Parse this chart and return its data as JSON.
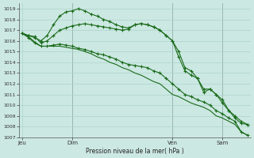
{
  "background_color": "#cce8e2",
  "grid_color": "#aad4cc",
  "line_color": "#1a6b1a",
  "ylabel": "Pression niveau de la mer( hPa )",
  "ylim": [
    1007,
    1019.5
  ],
  "yticks": [
    1007,
    1008,
    1009,
    1010,
    1011,
    1012,
    1013,
    1014,
    1015,
    1016,
    1017,
    1018,
    1019
  ],
  "xtick_labels": [
    "Jeu",
    "Dim",
    "Ven",
    "Sam"
  ],
  "xtick_positions": [
    0,
    8,
    24,
    32
  ],
  "vline_positions": [
    8,
    24,
    32
  ],
  "total_points": 37,
  "series1_x": [
    0,
    1,
    2,
    3,
    4,
    5,
    6,
    7,
    8,
    9,
    10,
    11,
    12,
    13,
    14,
    15,
    16,
    17,
    18,
    19,
    20,
    21,
    22,
    23,
    24,
    25,
    26,
    27,
    28,
    29,
    30,
    31,
    32,
    33,
    34,
    35,
    36
  ],
  "series1": [
    1016.7,
    1016.5,
    1016.4,
    1015.8,
    1016.0,
    1016.5,
    1017.0,
    1017.2,
    1017.4,
    1017.5,
    1017.6,
    1017.5,
    1017.4,
    1017.3,
    1017.2,
    1017.1,
    1017.0,
    1017.1,
    1017.5,
    1017.6,
    1017.5,
    1017.3,
    1017.0,
    1016.5,
    1016.0,
    1015.0,
    1013.5,
    1013.2,
    1012.5,
    1011.2,
    1011.5,
    1011.0,
    1010.5,
    1009.5,
    1009.0,
    1008.5,
    1008.2
  ],
  "series2_x": [
    0,
    1,
    2,
    3,
    4,
    5,
    6,
    7,
    8,
    9,
    10,
    11,
    12,
    13,
    14,
    15,
    16,
    17,
    18,
    19,
    20,
    21,
    22,
    23,
    24,
    25,
    26,
    27,
    28,
    29,
    30,
    31,
    32,
    33,
    34,
    35,
    36
  ],
  "series2": [
    1016.7,
    1016.5,
    1016.3,
    1016.0,
    1016.5,
    1017.5,
    1018.3,
    1018.7,
    1018.8,
    1019.0,
    1018.8,
    1018.5,
    1018.3,
    1018.0,
    1017.8,
    1017.5,
    1017.3,
    1017.2,
    1017.5,
    1017.6,
    1017.5,
    1017.3,
    1017.0,
    1016.5,
    1016.0,
    1014.5,
    1013.2,
    1012.8,
    1012.5,
    1011.5,
    1011.5,
    1011.0,
    1010.2,
    1009.5,
    1008.8,
    1008.3,
    1008.2
  ],
  "series3_x": [
    0,
    1,
    2,
    3,
    4,
    5,
    6,
    7,
    8,
    9,
    10,
    11,
    12,
    13,
    14,
    15,
    16,
    17,
    18,
    19,
    20,
    21,
    22,
    23,
    24,
    25,
    26,
    27,
    28,
    29,
    30,
    31,
    32,
    33,
    34,
    35,
    36
  ],
  "series3": [
    1016.7,
    1016.3,
    1015.8,
    1015.5,
    1015.5,
    1015.6,
    1015.7,
    1015.6,
    1015.5,
    1015.3,
    1015.2,
    1015.0,
    1014.8,
    1014.7,
    1014.5,
    1014.3,
    1014.0,
    1013.8,
    1013.7,
    1013.6,
    1013.5,
    1013.2,
    1013.0,
    1012.5,
    1012.0,
    1011.5,
    1011.0,
    1010.8,
    1010.5,
    1010.3,
    1010.0,
    1009.5,
    1009.2,
    1008.8,
    1008.5,
    1007.5,
    1007.2
  ],
  "series4_x": [
    0,
    1,
    2,
    3,
    4,
    5,
    6,
    7,
    8,
    9,
    10,
    11,
    12,
    13,
    14,
    15,
    16,
    17,
    18,
    19,
    20,
    21,
    22,
    23,
    24,
    25,
    26,
    27,
    28,
    29,
    30,
    31,
    32,
    33,
    34,
    35,
    36
  ],
  "series4": [
    1016.7,
    1016.4,
    1015.9,
    1015.5,
    1015.5,
    1015.5,
    1015.5,
    1015.4,
    1015.3,
    1015.2,
    1015.0,
    1014.8,
    1014.5,
    1014.3,
    1014.0,
    1013.8,
    1013.5,
    1013.3,
    1013.0,
    1012.8,
    1012.5,
    1012.2,
    1012.0,
    1011.5,
    1011.0,
    1010.8,
    1010.5,
    1010.2,
    1010.0,
    1009.8,
    1009.5,
    1009.0,
    1008.8,
    1008.5,
    1008.2,
    1007.5,
    1007.2
  ]
}
